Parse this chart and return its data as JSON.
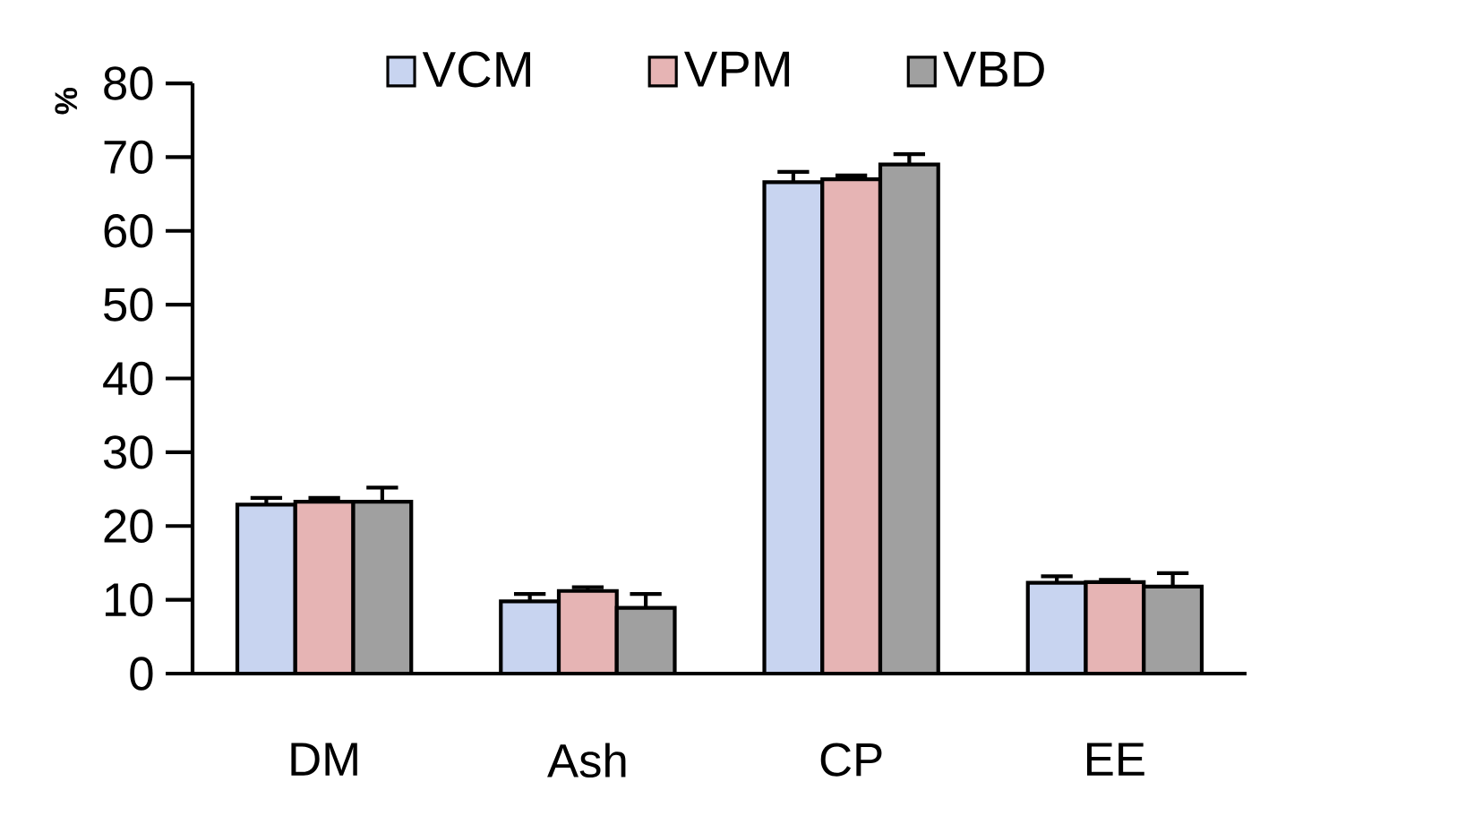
{
  "chart_data": {
    "type": "bar",
    "ylabel": "%",
    "categories": [
      "DM",
      "Ash",
      "CP",
      "EE"
    ],
    "series": [
      {
        "name": "VCM",
        "color": "#c8d4f0",
        "values": [
          22.9,
          9.8,
          66.6,
          12.3
        ],
        "errors": [
          [
            22.9,
            23.8
          ],
          [
            9.8,
            10.8
          ],
          [
            66.6,
            68.0
          ],
          [
            12.3,
            13.2
          ]
        ]
      },
      {
        "name": "VPM",
        "color": "#e6b4b4",
        "values": [
          23.3,
          11.2,
          67.0,
          12.4
        ],
        "errors": [
          [
            23.3,
            23.8
          ],
          [
            11.2,
            11.7
          ],
          [
            67.0,
            67.5
          ],
          [
            12.4,
            12.7
          ]
        ]
      },
      {
        "name": "VBD",
        "color": "#a0a0a0",
        "values": [
          23.3,
          8.9,
          69.0,
          11.8
        ],
        "errors": [
          [
            23.3,
            25.2
          ],
          [
            8.9,
            10.8
          ],
          [
            69.0,
            70.4
          ],
          [
            11.8,
            13.6
          ]
        ]
      }
    ],
    "ylim": [
      0,
      80
    ],
    "yticks": [
      0,
      10,
      20,
      30,
      40,
      50,
      60,
      70,
      80
    ],
    "legend": "top",
    "grid": false
  }
}
